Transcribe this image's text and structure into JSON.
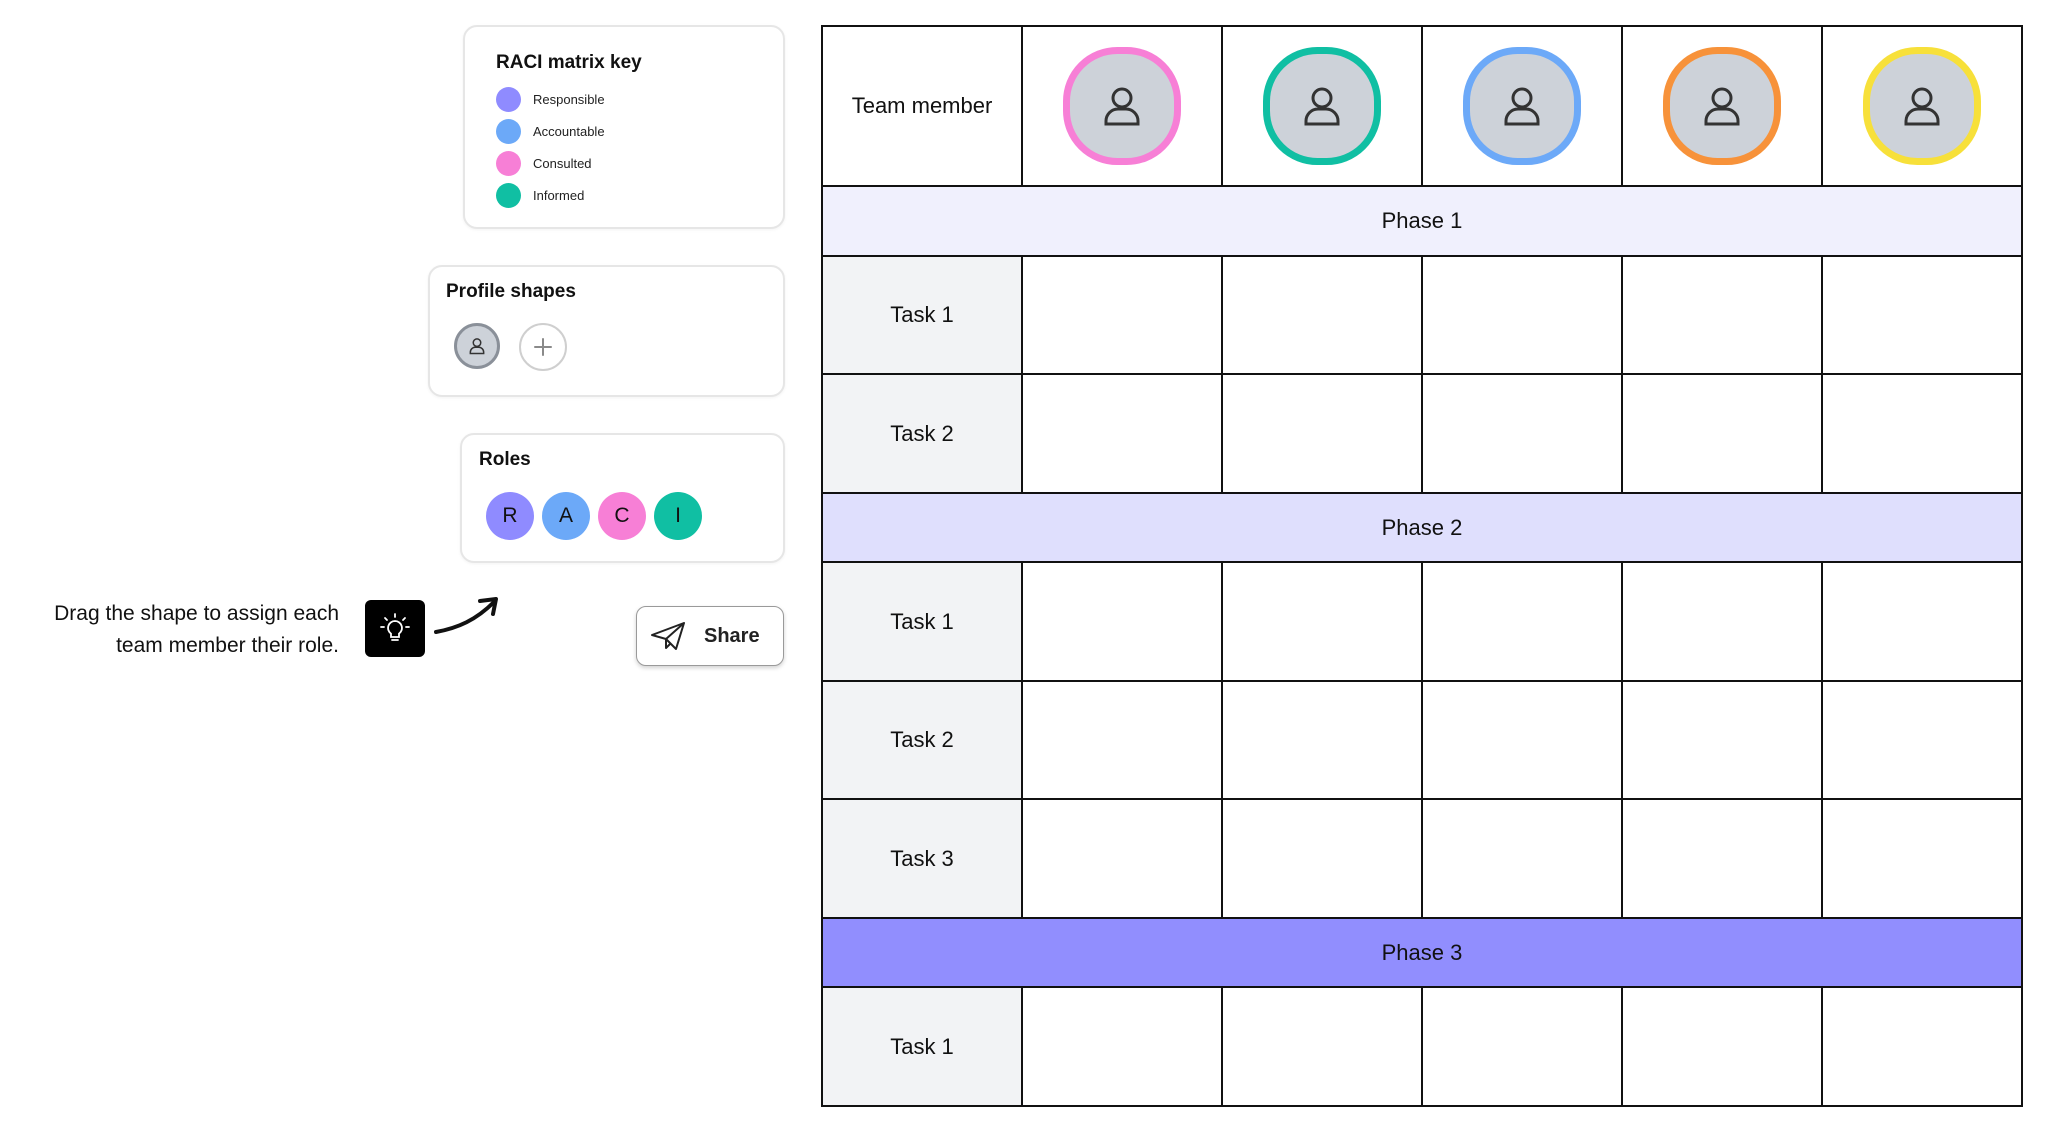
{
  "raci_key": {
    "title": "RACI matrix key",
    "items": [
      {
        "label": "Responsible",
        "color": "#8f8bff"
      },
      {
        "label": "Accountable",
        "color": "#6ca9f8"
      },
      {
        "label": "Consulted",
        "color": "#f77fd6"
      },
      {
        "label": "Informed",
        "color": "#10bfa3"
      }
    ]
  },
  "profile_shapes": {
    "title": "Profile shapes",
    "shape_icon": "user-icon",
    "add_icon": "plus-icon"
  },
  "roles": {
    "title": "Roles",
    "chips": [
      {
        "letter": "R",
        "color": "#8f8bff"
      },
      {
        "letter": "A",
        "color": "#6ca9f8"
      },
      {
        "letter": "C",
        "color": "#f77fd6"
      },
      {
        "letter": "I",
        "color": "#10bfa3"
      }
    ]
  },
  "hint": {
    "line1": "Drag the shape to assign each",
    "line2": "team member their role.",
    "icon": "lightbulb-icon"
  },
  "share": {
    "label": "Share",
    "icon": "paper-plane-icon"
  },
  "matrix": {
    "header_label": "Team member",
    "member_ring_colors": [
      "#f77fd6",
      "#10bfa3",
      "#6ca9f8",
      "#f7923a",
      "#f7e03a"
    ],
    "phases": [
      {
        "label": "Phase 1",
        "color": "#f0f0fd",
        "tasks": [
          "Task 1",
          "Task 2"
        ]
      },
      {
        "label": "Phase 2",
        "color": "#dfdffd",
        "tasks": [
          "Task 1",
          "Task 2",
          "Task 3"
        ]
      },
      {
        "label": "Phase 3",
        "color": "#918efe",
        "tasks": [
          "Task 1"
        ]
      }
    ]
  }
}
